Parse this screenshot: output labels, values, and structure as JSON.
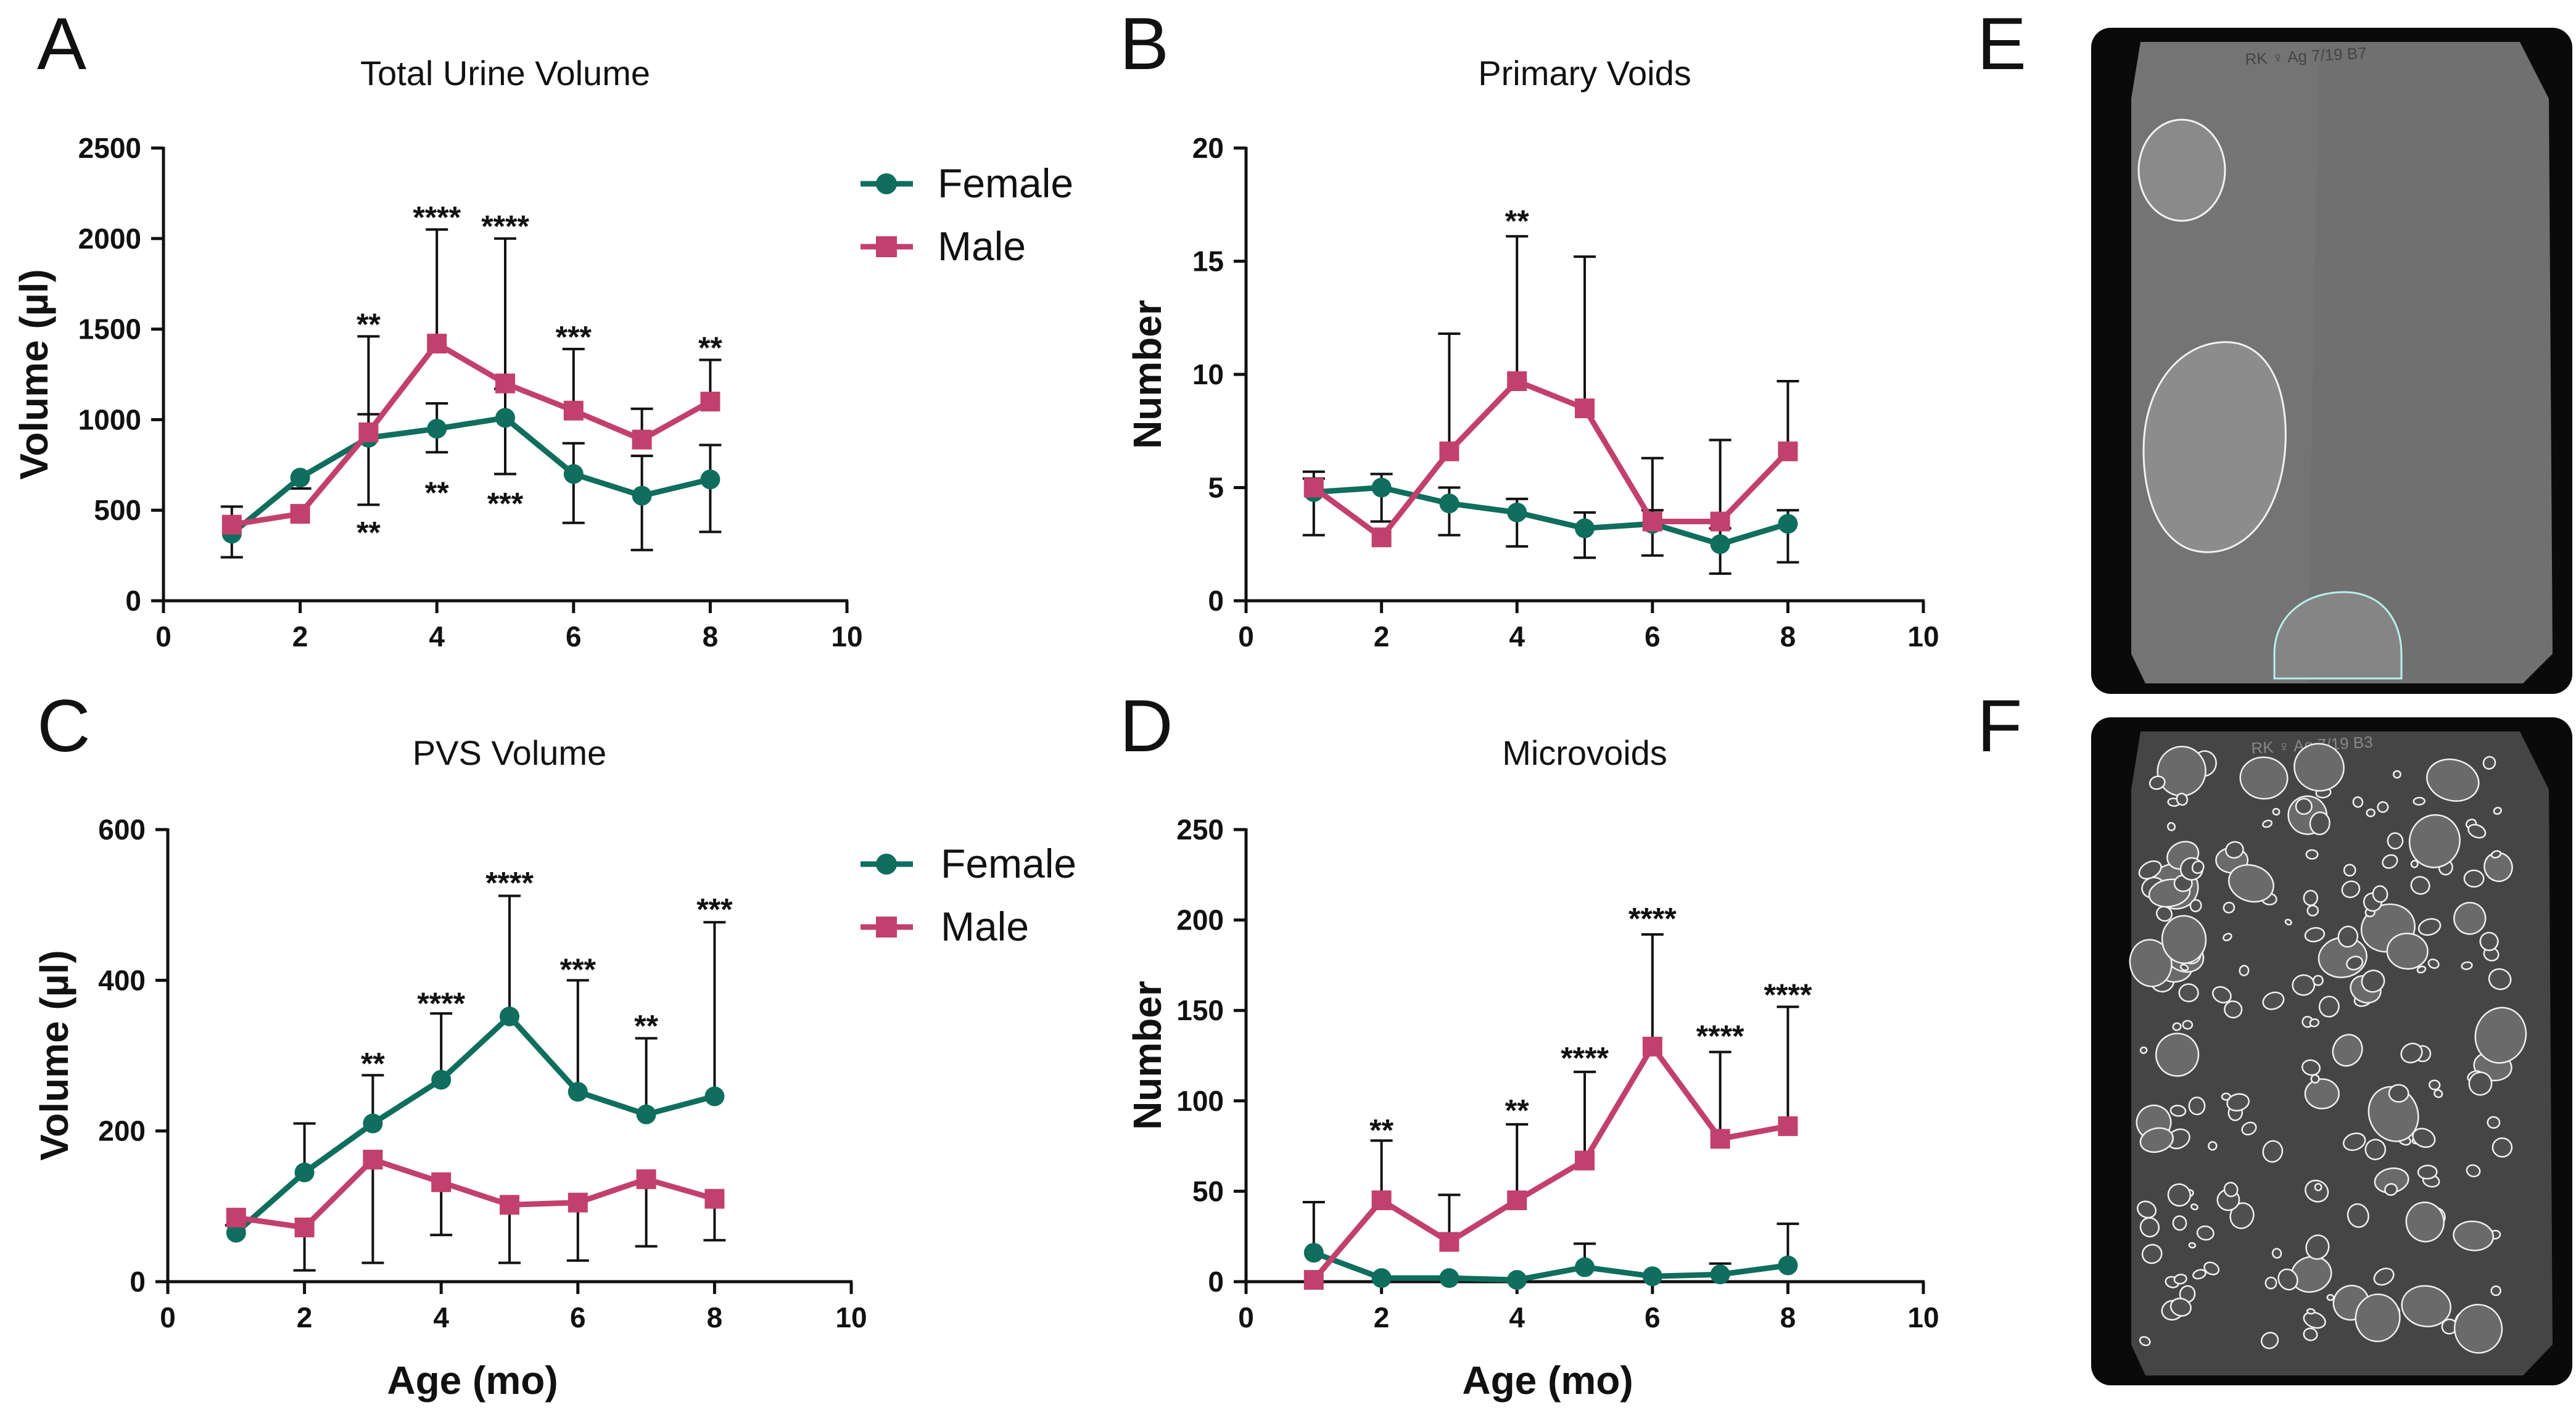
{
  "colors": {
    "female": "#0f6e5e",
    "male": "#c2406d",
    "axis": "#111111"
  },
  "legend": {
    "female": "Female",
    "male": "Male"
  },
  "chart_data": [
    {
      "panel": "A",
      "type": "line",
      "title": "Total Urine Volume",
      "xlabel": "",
      "ylabel": "Volume (µl)",
      "xlim": [
        0,
        10
      ],
      "ylim": [
        0,
        2500
      ],
      "xticks": [
        0,
        2,
        4,
        6,
        8,
        10
      ],
      "yticks": [
        0,
        500,
        1000,
        1500,
        2000,
        2500
      ],
      "legend_position": "top-right",
      "x": [
        1,
        2,
        3,
        4,
        5,
        6,
        7,
        8
      ],
      "series": [
        {
          "name": "Female",
          "key": "female",
          "marker": "circle",
          "values": [
            370,
            680,
            900,
            950,
            1010,
            700,
            580,
            670
          ],
          "error_upper": [
            520,
            620,
            1030,
            1090,
            1170,
            870,
            800,
            860
          ],
          "error_lower": [
            240,
            null,
            530,
            820,
            700,
            430,
            280,
            380
          ]
        },
        {
          "name": "Male",
          "key": "male",
          "marker": "square",
          "values": [
            420,
            480,
            930,
            1420,
            1200,
            1050,
            890,
            1100
          ],
          "error_upper": [
            null,
            null,
            1460,
            2050,
            2000,
            1390,
            1060,
            1330
          ],
          "error_lower": [
            null,
            null,
            null,
            null,
            null,
            null,
            null,
            null
          ]
        }
      ],
      "annotations": [
        {
          "x": 3,
          "y": 1530,
          "text": "**"
        },
        {
          "x": 4,
          "y": 2120,
          "text": "****"
        },
        {
          "x": 5,
          "y": 2070,
          "text": "****"
        },
        {
          "x": 6,
          "y": 1460,
          "text": "***"
        },
        {
          "x": 8,
          "y": 1400,
          "text": "**"
        },
        {
          "x": 3,
          "y": 380,
          "text": "**"
        },
        {
          "x": 4,
          "y": 600,
          "text": "**"
        },
        {
          "x": 5,
          "y": 540,
          "text": "***"
        }
      ]
    },
    {
      "panel": "B",
      "type": "line",
      "title": "Primary Voids",
      "xlabel": "",
      "ylabel": "Number",
      "xlim": [
        0,
        10
      ],
      "ylim": [
        0,
        20
      ],
      "xticks": [
        0,
        2,
        4,
        6,
        8,
        10
      ],
      "yticks": [
        0,
        5,
        10,
        15,
        20
      ],
      "x": [
        1,
        2,
        3,
        4,
        5,
        6,
        7,
        8
      ],
      "series": [
        {
          "name": "Female",
          "key": "female",
          "marker": "circle",
          "values": [
            4.8,
            5.0,
            4.3,
            3.9,
            3.2,
            3.4,
            2.5,
            3.4
          ],
          "error_upper": [
            5.4,
            5.6,
            5.0,
            4.5,
            3.9,
            4.0,
            3.2,
            4.0
          ],
          "error_lower": [
            2.9,
            3.5,
            2.9,
            2.4,
            1.9,
            2.0,
            1.2,
            1.7
          ]
        },
        {
          "name": "Male",
          "key": "male",
          "marker": "square",
          "values": [
            5.0,
            2.8,
            6.6,
            9.7,
            8.5,
            3.5,
            3.5,
            6.6
          ],
          "error_upper": [
            5.7,
            null,
            11.8,
            16.1,
            15.2,
            6.3,
            7.1,
            9.7
          ],
          "error_lower": [
            null,
            null,
            null,
            null,
            null,
            null,
            null,
            null
          ]
        }
      ],
      "annotations": [
        {
          "x": 4,
          "y": 16.8,
          "text": "**"
        }
      ]
    },
    {
      "panel": "C",
      "type": "line",
      "title": "PVS Volume",
      "xlabel": "",
      "ylabel": "Volume (µl)",
      "xlim": [
        0,
        10
      ],
      "ylim": [
        0,
        600
      ],
      "xticks": [
        0,
        2,
        4,
        6,
        8,
        10
      ],
      "yticks": [
        0,
        200,
        400,
        600
      ],
      "legend_position": "top-right",
      "x": [
        1,
        2,
        3,
        4,
        5,
        6,
        7,
        8
      ],
      "series": [
        {
          "name": "Female",
          "key": "female",
          "marker": "circle",
          "values": [
            65,
            145,
            210,
            268,
            352,
            252,
            222,
            246
          ],
          "error_upper": [
            75,
            210,
            274,
            356,
            512,
            400,
            323,
            477
          ],
          "error_lower": [
            null,
            null,
            null,
            null,
            null,
            null,
            null,
            null
          ]
        },
        {
          "name": "Male",
          "key": "male",
          "marker": "square",
          "values": [
            85,
            72,
            162,
            132,
            102,
            105,
            136,
            110
          ],
          "error_upper": [
            null,
            null,
            null,
            null,
            null,
            null,
            null,
            null
          ],
          "error_lower": [
            null,
            15,
            25,
            62,
            25,
            28,
            47,
            55
          ]
        }
      ],
      "annotations": [
        {
          "x": 3,
          "y": 290,
          "text": "**"
        },
        {
          "x": 4,
          "y": 370,
          "text": "****"
        },
        {
          "x": 5,
          "y": 530,
          "text": "****"
        },
        {
          "x": 6,
          "y": 415,
          "text": "***"
        },
        {
          "x": 7,
          "y": 340,
          "text": "**"
        },
        {
          "x": 8,
          "y": 495,
          "text": "***"
        }
      ]
    },
    {
      "panel": "D",
      "type": "line",
      "title": "Microvoids",
      "xlabel": "Age (mo)",
      "ylabel": "Number",
      "xlim": [
        0,
        10
      ],
      "ylim": [
        0,
        250
      ],
      "xticks": [
        0,
        2,
        4,
        6,
        8,
        10
      ],
      "yticks": [
        0,
        50,
        100,
        150,
        200,
        250
      ],
      "x": [
        1,
        2,
        3,
        4,
        5,
        6,
        7,
        8
      ],
      "series": [
        {
          "name": "Female",
          "key": "female",
          "marker": "circle",
          "values": [
            16,
            2,
            2,
            1,
            8,
            3,
            4,
            9
          ],
          "error_upper": [
            44,
            null,
            null,
            null,
            21,
            null,
            10,
            32
          ],
          "error_lower": [
            null,
            null,
            null,
            null,
            null,
            null,
            null,
            null
          ]
        },
        {
          "name": "Male",
          "key": "male",
          "marker": "square",
          "values": [
            1,
            45,
            22,
            45,
            67,
            130,
            79,
            86
          ],
          "error_upper": [
            null,
            78,
            48,
            87,
            116,
            192,
            127,
            152
          ],
          "error_lower": [
            null,
            null,
            null,
            null,
            null,
            null,
            null,
            null
          ]
        }
      ],
      "annotations": [
        {
          "x": 2,
          "y": 84,
          "text": "**"
        },
        {
          "x": 4,
          "y": 95,
          "text": "**"
        },
        {
          "x": 5,
          "y": 124,
          "text": "****"
        },
        {
          "x": 6,
          "y": 201,
          "text": "****"
        },
        {
          "x": 7,
          "y": 136,
          "text": "****"
        },
        {
          "x": 8,
          "y": 159,
          "text": "****"
        }
      ]
    }
  ],
  "x_axis_label_bottom": "Age (mo)",
  "panel_labels": [
    "A",
    "B",
    "C",
    "D",
    "E",
    "F"
  ],
  "images": {
    "E": {
      "description_label": "E",
      "handwriting": "RK ♀ Ag 7/19 B7"
    },
    "F": {
      "description_label": "F",
      "handwriting": "RK ♀ Ag 7/19 B3"
    }
  }
}
